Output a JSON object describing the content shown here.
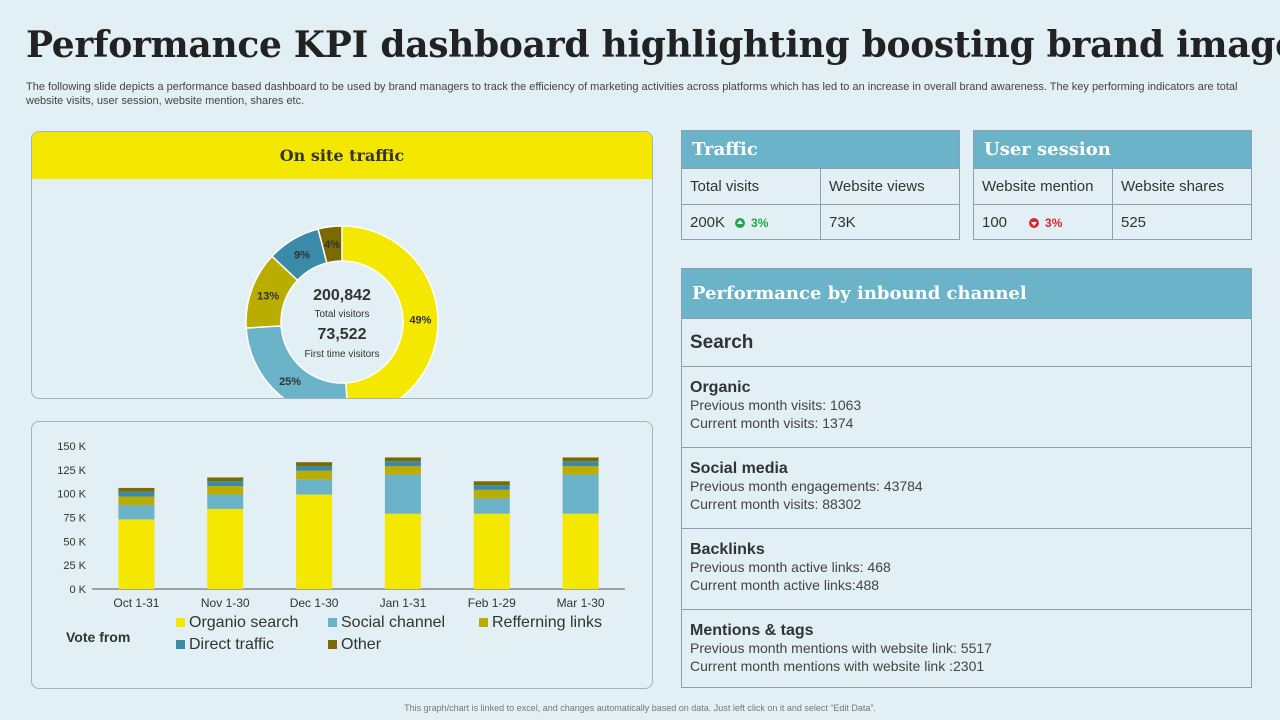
{
  "page": {
    "title": "Performance KPI dashboard highlighting boosting brand image",
    "subtitle": "The following slide depicts a performance based dashboard to be used by brand managers to track the efficiency of marketing activities across platforms which has led to an increase in overall brand awareness. The key performing indicators are total website visits, user session, website mention, shares etc.",
    "footnote": "This graph/chart is linked to excel, and changes automatically based on data. Just left click on it and select “Edit Data”."
  },
  "colors": {
    "organic": "#f5e800",
    "social": "#6ab3c8",
    "referring": "#b8ad00",
    "direct": "#3a8aa8",
    "other": "#7a6a00",
    "header": "#6ab3c8",
    "up": "#1fa84a",
    "down": "#e0242b"
  },
  "donut": {
    "header": "On site traffic",
    "total_value": "200,842",
    "total_label": "Total visitors",
    "first_value": "73,522",
    "first_label": "First time visitors",
    "slices": [
      {
        "label": "49%",
        "value": 49,
        "color": "#f5e800"
      },
      {
        "label": "25%",
        "value": 25,
        "color": "#6ab3c8"
      },
      {
        "label": "13%",
        "value": 13,
        "color": "#b8ad00"
      },
      {
        "label": "9%",
        "value": 9,
        "color": "#3a8aa8"
      },
      {
        "label": "4%",
        "value": 4,
        "color": "#7a6a00"
      }
    ]
  },
  "chart_data": {
    "type": "bar",
    "stacked": true,
    "categories": [
      "Oct 1-31",
      "Nov 1-30",
      "Dec 1-30",
      "Jan 1-31",
      "Feb 1-29",
      "Mar 1-30"
    ],
    "ylim": [
      0,
      150000
    ],
    "yticks": [
      "0 K",
      "25 K",
      "50 K",
      "75 K",
      "100 K",
      "125 K",
      "150 K"
    ],
    "legend_title": "Vote from",
    "series": [
      {
        "name": "Organio search",
        "color": "#f5e800",
        "values": [
          73000,
          84000,
          99000,
          79000,
          79000,
          79000
        ]
      },
      {
        "name": "Social channel",
        "color": "#6ab3c8",
        "values": [
          15000,
          15000,
          16000,
          41000,
          16000,
          41000
        ]
      },
      {
        "name": "Refferning links",
        "color": "#b8ad00",
        "values": [
          9000,
          9000,
          9000,
          9000,
          9000,
          9000
        ]
      },
      {
        "name": "Direct traffic",
        "color": "#3a8aa8",
        "values": [
          5000,
          5000,
          5000,
          5000,
          5000,
          5000
        ]
      },
      {
        "name": "Other",
        "color": "#7a6a00",
        "values": [
          4000,
          4000,
          4000,
          4000,
          4000,
          4000
        ]
      }
    ]
  },
  "traffic": {
    "header": "Traffic",
    "col1_label": "Total visits",
    "col2_label": "Website views",
    "col1_value": "200K",
    "col1_change": "3%",
    "col2_value": "73K"
  },
  "user_session": {
    "header": "User session",
    "col1_label": "Website mention",
    "col2_label": "Website shares",
    "col1_value": "100",
    "col1_change": "3%",
    "col2_value": "525"
  },
  "inbound": {
    "header": "Performance by inbound channel",
    "search_label": "Search",
    "blocks": [
      {
        "title": "Organic",
        "line1": "Previous month visits: 1063",
        "line2": "Current month visits:  1374"
      },
      {
        "title": "Social media",
        "line1": "Previous month engagements: 43784",
        "line2": "Current month visits:  88302"
      },
      {
        "title": "Backlinks",
        "line1": "Previous month active links: 468",
        "line2": "Current month active links:488"
      },
      {
        "title": "Mentions & tags",
        "line1": "Previous month mentions with website link: 5517",
        "line2": "Current month mentions with website link :2301"
      }
    ]
  }
}
